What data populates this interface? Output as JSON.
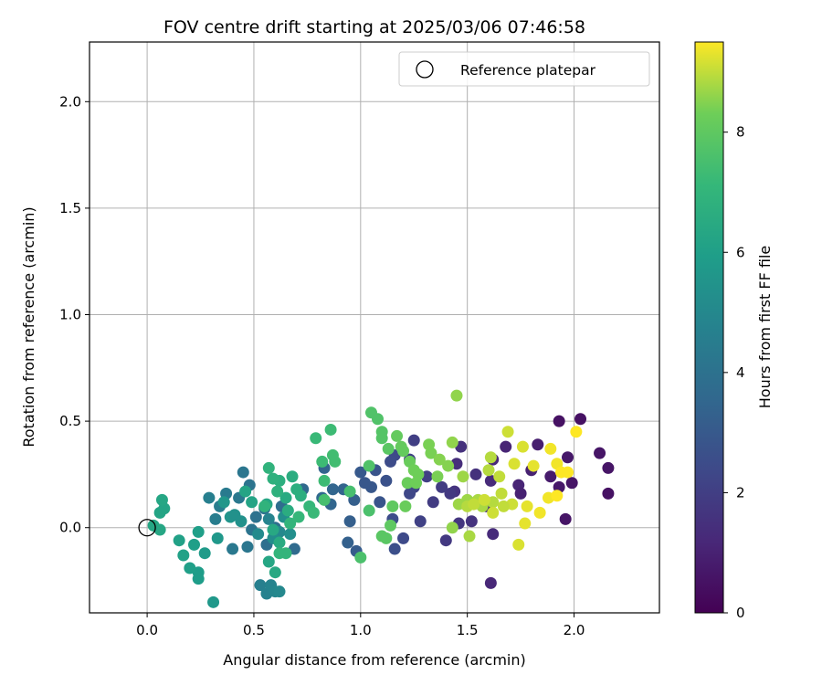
{
  "chart_data": {
    "type": "scatter",
    "title": "FOV centre drift starting at 2025/03/06 07:46:58",
    "xlabel": "Angular distance from reference (arcmin)",
    "ylabel": "Rotation from reference (arcmin)",
    "xlim": [
      -0.27,
      2.4
    ],
    "ylim": [
      -0.4,
      2.28
    ],
    "xticks": [
      0.0,
      0.5,
      1.0,
      1.5,
      2.0
    ],
    "yticks": [
      0.0,
      0.5,
      1.0,
      1.5,
      2.0
    ],
    "grid": true,
    "legend": {
      "placement": "top-right",
      "entries": [
        "Reference platepar"
      ]
    },
    "reference_point": {
      "x": 0.0,
      "y": 0.0,
      "marker": "open-circle"
    },
    "colorbar": {
      "label": "Hours from first FF file",
      "colormap": "viridis",
      "range": [
        0,
        9.5
      ],
      "ticks": [
        0,
        2,
        4,
        6,
        8
      ]
    },
    "series": [
      {
        "color_variable": "hours",
        "points": [
          [
            1.93,
            0.5,
            0.5
          ],
          [
            2.03,
            0.51,
            0.5
          ],
          [
            2.12,
            0.35,
            0.6
          ],
          [
            2.16,
            0.28,
            0.6
          ],
          [
            2.16,
            0.16,
            0.5
          ],
          [
            1.96,
            0.04,
            0.6
          ],
          [
            1.89,
            0.24,
            0.8
          ],
          [
            1.93,
            0.19,
            0.7
          ],
          [
            1.97,
            0.33,
            0.7
          ],
          [
            1.99,
            0.21,
            0.6
          ],
          [
            1.83,
            0.39,
            0.9
          ],
          [
            1.8,
            0.27,
            1.0
          ],
          [
            1.74,
            0.2,
            1.1
          ],
          [
            1.75,
            0.16,
            1.0
          ],
          [
            1.68,
            0.38,
            1.1
          ],
          [
            1.62,
            0.32,
            1.2
          ],
          [
            1.61,
            0.22,
            1.3
          ],
          [
            1.59,
            0.1,
            1.4
          ],
          [
            1.62,
            -0.03,
            1.3
          ],
          [
            1.61,
            -0.26,
            1.2
          ],
          [
            1.54,
            0.25,
            1.5
          ],
          [
            1.52,
            0.03,
            1.6
          ],
          [
            1.47,
            0.38,
            1.5
          ],
          [
            1.45,
            0.3,
            1.4
          ],
          [
            1.44,
            0.17,
            1.6
          ],
          [
            1.46,
            0.02,
            1.7
          ],
          [
            1.42,
            0.16,
            1.8
          ],
          [
            1.4,
            -0.06,
            1.8
          ],
          [
            1.38,
            0.19,
            1.9
          ],
          [
            1.34,
            0.12,
            1.9
          ],
          [
            1.31,
            0.24,
            2.0
          ],
          [
            1.28,
            0.03,
            2.1
          ],
          [
            1.25,
            0.41,
            2.0
          ],
          [
            1.23,
            0.32,
            2.1
          ],
          [
            1.25,
            0.19,
            2.2
          ],
          [
            1.23,
            0.16,
            2.3
          ],
          [
            1.2,
            -0.05,
            2.4
          ],
          [
            1.16,
            0.34,
            2.4
          ],
          [
            1.14,
            0.31,
            2.5
          ],
          [
            1.15,
            0.04,
            2.5
          ],
          [
            1.16,
            -0.1,
            2.6
          ],
          [
            1.12,
            0.22,
            2.7
          ],
          [
            1.09,
            0.12,
            2.8
          ],
          [
            1.07,
            0.27,
            2.8
          ],
          [
            1.05,
            0.19,
            2.9
          ],
          [
            1.0,
            0.26,
            3.0
          ],
          [
            1.02,
            0.21,
            2.9
          ],
          [
            0.98,
            -0.11,
            3.1
          ],
          [
            0.95,
            0.03,
            3.2
          ],
          [
            0.94,
            -0.07,
            3.3
          ],
          [
            0.97,
            0.13,
            3.2
          ],
          [
            0.92,
            0.18,
            3.4
          ],
          [
            0.87,
            0.18,
            3.5
          ],
          [
            0.86,
            0.11,
            3.5
          ],
          [
            0.82,
            0.14,
            3.6
          ],
          [
            0.83,
            0.28,
            3.4
          ],
          [
            0.73,
            0.18,
            3.6
          ],
          [
            0.69,
            -0.1,
            3.7
          ],
          [
            0.63,
            0.1,
            3.8
          ],
          [
            0.6,
            0.0,
            3.9
          ],
          [
            0.55,
            0.09,
            4.0
          ],
          [
            0.56,
            -0.08,
            3.9
          ],
          [
            0.51,
            0.05,
            4.0
          ],
          [
            0.49,
            -0.01,
            4.1
          ],
          [
            0.48,
            0.2,
            4.1
          ],
          [
            0.45,
            0.26,
            4.2
          ],
          [
            0.47,
            -0.09,
            4.2
          ],
          [
            0.43,
            0.14,
            4.3
          ],
          [
            0.4,
            -0.1,
            4.3
          ],
          [
            0.37,
            0.16,
            4.4
          ],
          [
            0.34,
            0.1,
            4.5
          ],
          [
            0.32,
            0.04,
            4.5
          ],
          [
            0.29,
            0.14,
            4.6
          ],
          [
            0.53,
            -0.27,
            4.6
          ],
          [
            0.56,
            -0.31,
            4.7
          ],
          [
            0.58,
            -0.27,
            4.8
          ],
          [
            0.6,
            -0.3,
            4.9
          ],
          [
            0.62,
            -0.3,
            5.0
          ],
          [
            0.57,
            0.04,
            4.8
          ],
          [
            0.62,
            -0.02,
            5.0
          ],
          [
            0.52,
            -0.03,
            5.1
          ],
          [
            0.59,
            -0.05,
            5.2
          ],
          [
            0.64,
            0.05,
            5.3
          ],
          [
            0.67,
            -0.03,
            5.3
          ],
          [
            0.44,
            0.03,
            5.4
          ],
          [
            0.39,
            0.05,
            5.5
          ],
          [
            0.41,
            0.06,
            5.4
          ],
          [
            0.36,
            0.12,
            5.6
          ],
          [
            0.33,
            -0.05,
            5.7
          ],
          [
            0.31,
            -0.35,
            5.7
          ],
          [
            0.27,
            -0.12,
            5.8
          ],
          [
            0.24,
            -0.21,
            5.9
          ],
          [
            0.24,
            -0.24,
            5.9
          ],
          [
            0.24,
            -0.02,
            6.0
          ],
          [
            0.22,
            -0.08,
            6.0
          ],
          [
            0.2,
            -0.19,
            6.0
          ],
          [
            0.17,
            -0.13,
            6.1
          ],
          [
            0.15,
            -0.06,
            6.1
          ],
          [
            0.08,
            0.09,
            6.2
          ],
          [
            0.06,
            0.07,
            6.2
          ],
          [
            0.07,
            0.13,
            6.3
          ],
          [
            0.06,
            -0.01,
            6.3
          ],
          [
            0.03,
            0.01,
            6.3
          ],
          [
            0.46,
            0.17,
            6.2
          ],
          [
            0.49,
            0.12,
            6.2
          ],
          [
            0.56,
            0.11,
            6.3
          ],
          [
            0.57,
            -0.16,
            6.3
          ],
          [
            0.6,
            -0.21,
            6.4
          ],
          [
            0.59,
            -0.01,
            6.4
          ],
          [
            0.62,
            -0.07,
            6.5
          ],
          [
            0.65,
            0.14,
            6.5
          ],
          [
            0.66,
            0.08,
            6.6
          ],
          [
            0.68,
            0.24,
            6.6
          ],
          [
            0.7,
            0.18,
            6.7
          ],
          [
            0.72,
            0.15,
            6.7
          ],
          [
            0.62,
            0.22,
            6.7
          ],
          [
            0.61,
            0.17,
            6.8
          ],
          [
            0.59,
            0.23,
            6.8
          ],
          [
            0.57,
            0.28,
            6.9
          ],
          [
            0.55,
            0.1,
            6.9
          ],
          [
            0.62,
            -0.12,
            7.0
          ],
          [
            0.65,
            -0.12,
            7.0
          ],
          [
            0.67,
            0.02,
            7.0
          ],
          [
            0.71,
            0.05,
            7.1
          ],
          [
            0.76,
            0.1,
            7.1
          ],
          [
            0.78,
            0.07,
            7.2
          ],
          [
            0.79,
            0.42,
            7.2
          ],
          [
            0.82,
            0.31,
            7.3
          ],
          [
            0.83,
            0.22,
            7.3
          ],
          [
            0.86,
            0.46,
            7.3
          ],
          [
            0.88,
            0.31,
            7.4
          ],
          [
            0.87,
            0.34,
            7.4
          ],
          [
            0.83,
            0.13,
            7.5
          ],
          [
            0.95,
            0.17,
            7.5
          ],
          [
            1.0,
            -0.14,
            7.6
          ],
          [
            1.04,
            0.08,
            7.6
          ],
          [
            1.04,
            0.29,
            7.7
          ],
          [
            1.05,
            0.54,
            7.7
          ],
          [
            1.08,
            0.51,
            7.7
          ],
          [
            1.1,
            0.45,
            7.8
          ],
          [
            1.1,
            0.42,
            7.8
          ],
          [
            1.13,
            0.37,
            7.9
          ],
          [
            1.1,
            -0.04,
            7.9
          ],
          [
            1.12,
            -0.05,
            7.9
          ],
          [
            1.14,
            0.01,
            8.0
          ],
          [
            1.15,
            0.1,
            8.0
          ],
          [
            1.17,
            0.43,
            8.1
          ],
          [
            1.19,
            0.38,
            8.1
          ],
          [
            1.2,
            0.36,
            8.1
          ],
          [
            1.21,
            0.1,
            8.2
          ],
          [
            1.22,
            0.21,
            8.2
          ],
          [
            1.23,
            0.31,
            8.2
          ],
          [
            1.25,
            0.27,
            8.3
          ],
          [
            1.26,
            0.21,
            8.3
          ],
          [
            1.27,
            0.25,
            8.3
          ],
          [
            1.32,
            0.39,
            8.4
          ],
          [
            1.33,
            0.35,
            8.4
          ],
          [
            1.36,
            0.24,
            8.4
          ],
          [
            1.37,
            0.32,
            8.5
          ],
          [
            1.41,
            0.29,
            8.5
          ],
          [
            1.43,
            0.4,
            8.6
          ],
          [
            1.45,
            0.62,
            8.6
          ],
          [
            1.43,
            0.0,
            8.6
          ],
          [
            1.46,
            0.11,
            8.7
          ],
          [
            1.48,
            0.24,
            8.7
          ],
          [
            1.5,
            0.13,
            8.7
          ],
          [
            1.51,
            -0.04,
            8.8
          ],
          [
            1.55,
            0.13,
            8.8
          ],
          [
            1.57,
            0.1,
            8.8
          ],
          [
            1.6,
            0.27,
            8.9
          ],
          [
            1.61,
            0.33,
            8.9
          ],
          [
            1.62,
            0.12,
            8.9
          ],
          [
            1.65,
            0.24,
            9.0
          ],
          [
            1.66,
            0.16,
            9.0
          ],
          [
            1.69,
            0.45,
            9.1
          ],
          [
            1.71,
            0.11,
            9.1
          ],
          [
            1.72,
            0.3,
            9.2
          ],
          [
            1.74,
            -0.08,
            9.2
          ],
          [
            1.76,
            0.38,
            9.2
          ],
          [
            1.77,
            0.02,
            9.3
          ],
          [
            1.78,
            0.1,
            9.3
          ],
          [
            1.81,
            0.29,
            9.3
          ],
          [
            1.84,
            0.07,
            9.4
          ],
          [
            1.88,
            0.14,
            9.4
          ],
          [
            1.89,
            0.37,
            9.4
          ],
          [
            1.92,
            0.3,
            9.4
          ],
          [
            1.92,
            0.15,
            9.5
          ],
          [
            1.94,
            0.26,
            9.5
          ],
          [
            1.97,
            0.26,
            9.5
          ],
          [
            2.01,
            0.45,
            9.5
          ],
          [
            1.5,
            0.1,
            8.9
          ],
          [
            1.53,
            0.11,
            9.0
          ],
          [
            1.67,
            0.1,
            9.0
          ],
          [
            1.62,
            0.07,
            9.1
          ],
          [
            1.58,
            0.13,
            9.1
          ]
        ]
      }
    ]
  }
}
